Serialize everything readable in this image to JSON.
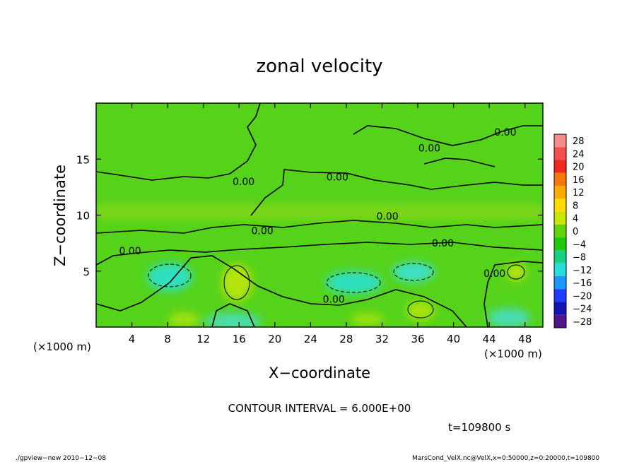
{
  "chart_data": {
    "type": "heatmap",
    "title": "zonal velocity",
    "xlabel": "X−coordinate",
    "ylabel": "Z−coordinate",
    "x_unit_left": "(×1000 m)",
    "x_unit_right": "(×1000 m)",
    "xlim": [
      0,
      50
    ],
    "ylim": [
      0,
      20
    ],
    "x_ticks": [
      4,
      8,
      12,
      16,
      20,
      24,
      28,
      32,
      36,
      40,
      44,
      48
    ],
    "y_ticks": [
      5,
      10,
      15
    ],
    "colorbar": {
      "labels": [
        "28",
        "24",
        "20",
        "16",
        "12",
        "8",
        "4",
        "0",
        "−4",
        "−8",
        "−12",
        "−16",
        "−20",
        "−24",
        "−28"
      ],
      "colors": [
        "#f48c8c",
        "#f45050",
        "#f0281e",
        "#f5780a",
        "#ffaa00",
        "#ffdc00",
        "#c8e600",
        "#64d20a",
        "#1ec80a",
        "#14d282",
        "#28dcdc",
        "#1e96ff",
        "#1e3cff",
        "#1414b4",
        "#50148c"
      ]
    },
    "contour_labels": [
      {
        "x": 16.5,
        "z": 13.0,
        "text": "0.00"
      },
      {
        "x": 27.0,
        "z": 13.4,
        "text": "0.00"
      },
      {
        "x": 37.3,
        "z": 16.0,
        "text": "0.00"
      },
      {
        "x": 45.8,
        "z": 17.4,
        "text": "0.00"
      },
      {
        "x": 32.6,
        "z": 9.9,
        "text": "0.00"
      },
      {
        "x": 18.6,
        "z": 8.6,
        "text": "0.00"
      },
      {
        "x": 38.8,
        "z": 7.5,
        "text": "0.00"
      },
      {
        "x": 3.8,
        "z": 6.8,
        "text": "0.00"
      },
      {
        "x": 26.6,
        "z": 2.5,
        "text": "0.00"
      },
      {
        "x": 44.6,
        "z": 4.8,
        "text": "0.00"
      }
    ],
    "note": "CONTOUR INTERVAL = 6.000E+00",
    "time": "t=109800 s",
    "footer_left": "./gpview−new   2010−12−08",
    "footer_right": "MarsCond_VelX.nc@VelX,x=0:50000,z=0:20000,t=109800"
  }
}
